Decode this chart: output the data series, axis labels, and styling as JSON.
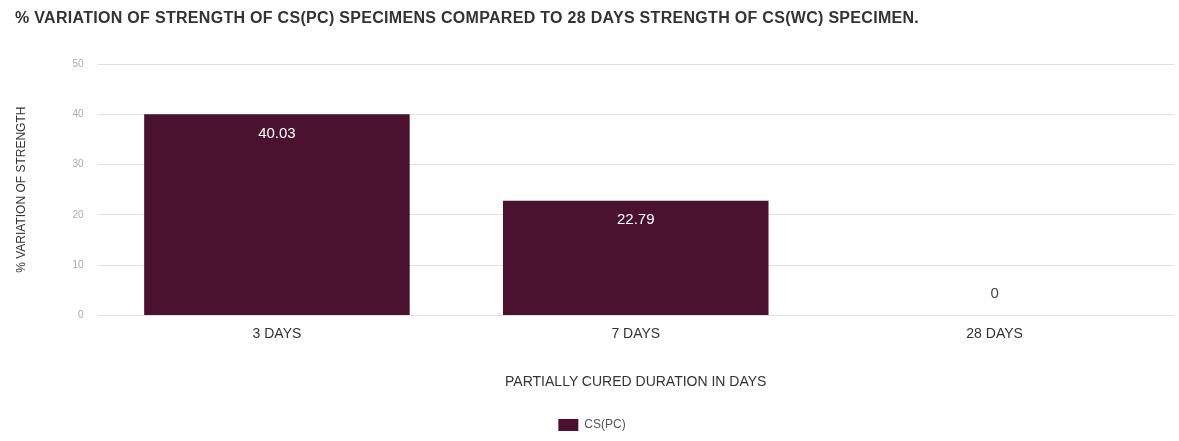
{
  "chart_data": {
    "type": "bar",
    "title": "% VARIATION OF STRENGTH OF CS(PC) SPECIMENS COMPARED TO 28 DAYS STRENGTH OF CS(WC) SPECIMEN.",
    "xlabel": "PARTIALLY CURED DURATION IN DAYS",
    "ylabel": "% VARIATION OF STRENGTH",
    "categories": [
      "3 DAYS",
      "7 DAYS",
      "28 DAYS"
    ],
    "series": [
      {
        "name": "CS(PC)",
        "color": "#4b1230",
        "values": [
          40.03,
          22.79,
          0
        ]
      }
    ],
    "ylim": [
      0,
      50
    ],
    "yticks": [
      0,
      10,
      20,
      30,
      40,
      50
    ],
    "grid": "y",
    "legend": "bottom",
    "data_labels": true
  }
}
